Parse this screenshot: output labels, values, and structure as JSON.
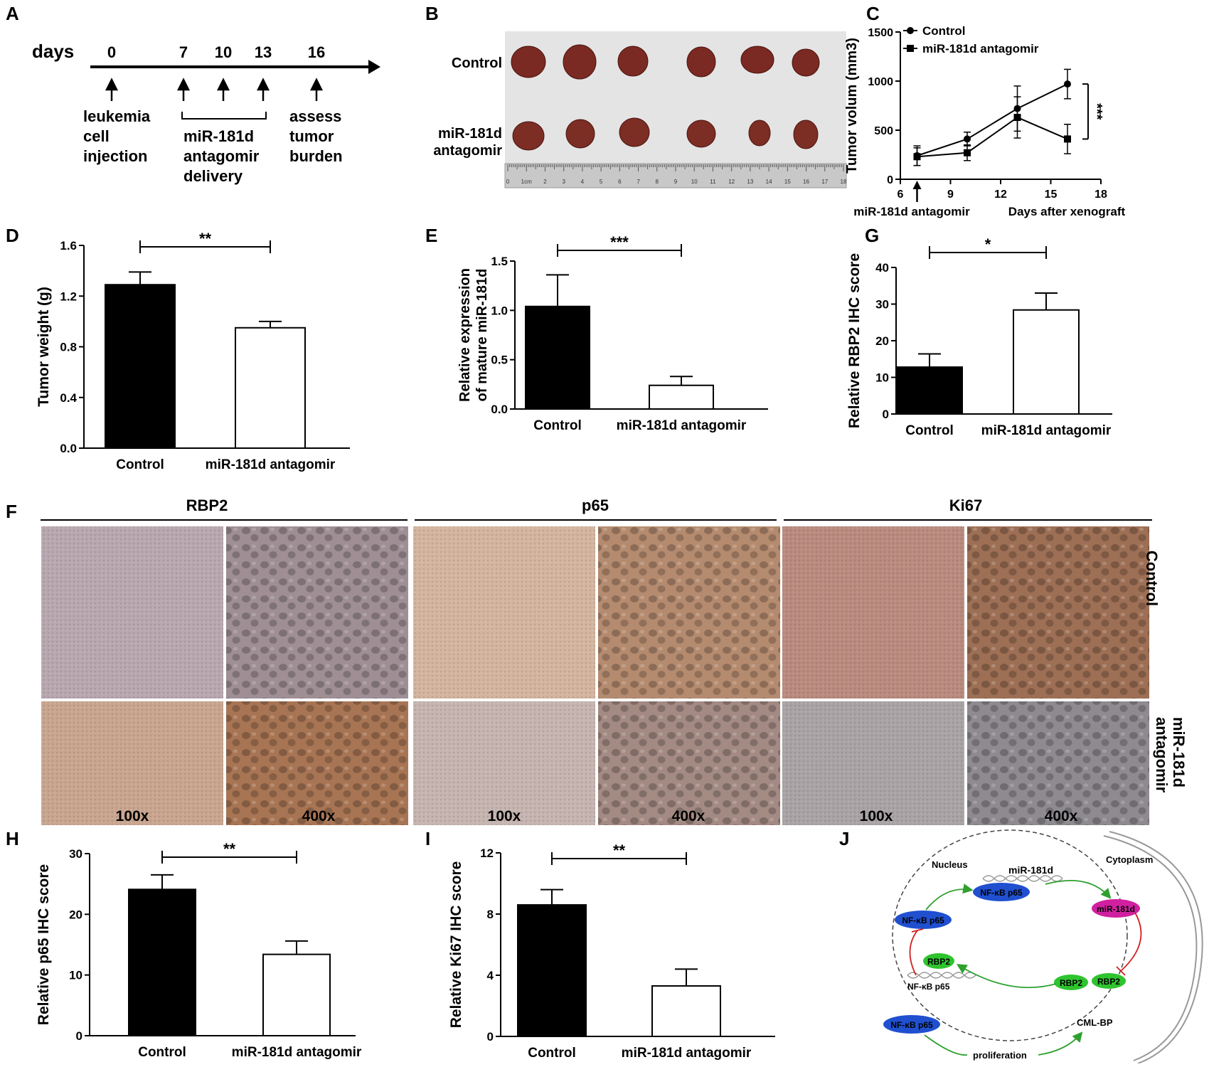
{
  "panels": {
    "A": "A",
    "B": "B",
    "C": "C",
    "D": "D",
    "E": "E",
    "F": "F",
    "G": "G",
    "H": "H",
    "I": "I",
    "J": "J"
  },
  "timeline": {
    "days_label": "days",
    "ticks": [
      "0",
      "7",
      "10",
      "13",
      "16"
    ],
    "label_injection": [
      "leukemia",
      "cell",
      "injection"
    ],
    "label_delivery": [
      "miR-181d",
      "antagomir",
      "delivery"
    ],
    "label_assess": [
      "assess",
      "tumor",
      "burden"
    ]
  },
  "photo_b": {
    "row1": "Control",
    "row2_line1": "miR-181d",
    "row2_line2": "antagomir",
    "ruler_labels": [
      "0",
      "1cm",
      "2",
      "3",
      "4",
      "5",
      "6",
      "7",
      "8",
      "9",
      "10",
      "11",
      "12",
      "13",
      "14",
      "15",
      "16",
      "17",
      "18"
    ]
  },
  "chart_data": [
    {
      "id": "C",
      "type": "line",
      "ylabel": "Tumor volum (mm3)",
      "xlabel": "Days after xenograft",
      "x_annotation": "miR-181d antagomir",
      "xlim": [
        6,
        18
      ],
      "ylim": [
        0,
        1500
      ],
      "xticks": [
        "6",
        "9",
        "12",
        "15",
        "18"
      ],
      "yticks": [
        "0",
        "500",
        "1000",
        "1500"
      ],
      "x": [
        7,
        10,
        13,
        16
      ],
      "series": [
        {
          "name": "Control",
          "marker": "circle",
          "values": [
            240,
            410,
            720,
            970
          ],
          "err": [
            100,
            70,
            230,
            150
          ]
        },
        {
          "name": "miR-181d antagomir",
          "marker": "square",
          "values": [
            230,
            270,
            630,
            410
          ],
          "err": [
            90,
            80,
            210,
            150
          ]
        }
      ],
      "significance": "***"
    },
    {
      "id": "D",
      "type": "bar",
      "ylabel": "Tumor weight (g)",
      "categories": [
        "Control",
        "miR-181d antagomir"
      ],
      "values": [
        1.29,
        0.95
      ],
      "err": [
        0.1,
        0.05
      ],
      "ylim": [
        0,
        1.6
      ],
      "yticks": [
        "0.0",
        "0.4",
        "0.8",
        "1.2",
        "1.6"
      ],
      "significance": "**"
    },
    {
      "id": "E",
      "type": "bar",
      "ylabel_line1": "Relative expression",
      "ylabel_line2": "of mature miR-181d",
      "categories": [
        "Control",
        "miR-181d antagomir"
      ],
      "values": [
        1.04,
        0.24
      ],
      "err": [
        0.32,
        0.09
      ],
      "ylim": [
        0,
        1.5
      ],
      "yticks": [
        "0.0",
        "0.5",
        "1.0",
        "1.5"
      ],
      "significance": "***"
    },
    {
      "id": "G",
      "type": "bar",
      "ylabel": "Relative RBP2 IHC score",
      "categories": [
        "Control",
        "miR-181d antagomir"
      ],
      "values": [
        12.8,
        28.4
      ],
      "err": [
        3.6,
        4.6
      ],
      "ylim": [
        0,
        40
      ],
      "yticks": [
        "0",
        "10",
        "20",
        "30",
        "40"
      ],
      "significance": "*"
    },
    {
      "id": "H",
      "type": "bar",
      "ylabel": "Relative p65 IHC score",
      "categories": [
        "Control",
        "miR-181d antagomir"
      ],
      "values": [
        24.1,
        13.4
      ],
      "err": [
        2.4,
        2.2
      ],
      "ylim": [
        0,
        30
      ],
      "yticks": [
        "0",
        "10",
        "20",
        "30"
      ],
      "significance": "**"
    },
    {
      "id": "I",
      "type": "bar",
      "ylabel": "Relative Ki67 IHC score",
      "categories": [
        "Control",
        "miR-181d antagomir"
      ],
      "values": [
        8.6,
        3.3
      ],
      "err": [
        1.0,
        1.1
      ],
      "ylim": [
        0,
        12
      ],
      "yticks": [
        "0",
        "4",
        "8",
        "12"
      ],
      "significance": "**"
    }
  ],
  "panel_f": {
    "groups": [
      "RBP2",
      "p65",
      "Ki67"
    ],
    "row_control": "Control",
    "row_antagomir_line1": "miR-181d",
    "row_antagomir_line2": "antagomir",
    "mag_low": "100x",
    "mag_high": "400x",
    "colors": {
      "rbp2_ctrl": "#b9a7b0",
      "rbp2_ant": "#c9a58f",
      "p65_ctrl": "#d3b59f",
      "p65_ant": "#c5b4b0",
      "ki67_ctrl": "#b98b7f",
      "ki67_ant": "#a9a3a6"
    }
  },
  "panel_j": {
    "nucleus": "Nucleus",
    "cytoplasm": "Cytoplasm",
    "mir_gene": "miR-181d",
    "nfkb_gene": "NF-κB p65",
    "nfkb_protein": "NF-κB p65",
    "mir_mature": "miR-181d",
    "rbp2": "RBP2",
    "proliferation": "proliferation",
    "cml": "CML-BP"
  }
}
